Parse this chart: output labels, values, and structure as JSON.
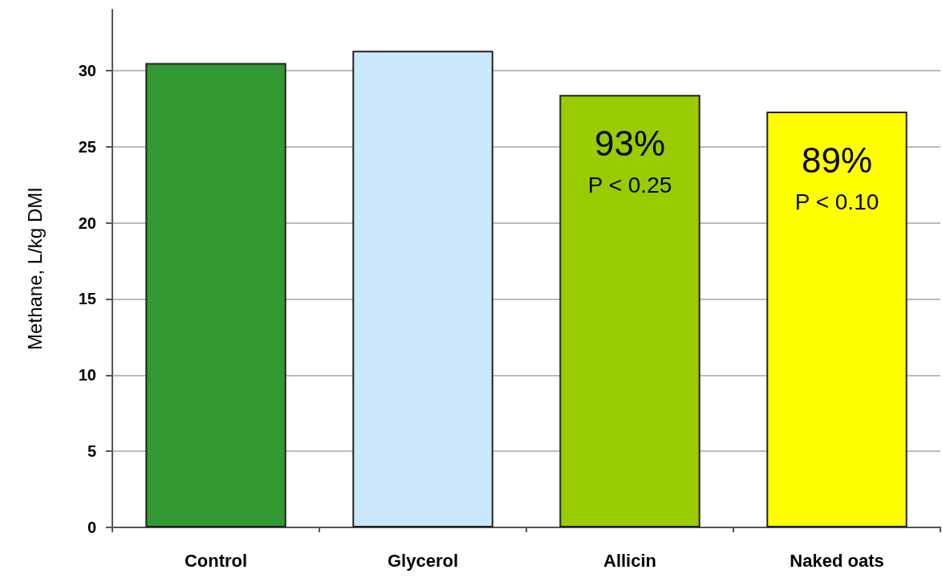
{
  "chart_data": {
    "type": "bar",
    "ylabel": "Methane, L/kg DMI",
    "categories": [
      "Control",
      "Glycerol",
      "Allicin",
      "Naked oats"
    ],
    "values": [
      30.5,
      31.3,
      28.4,
      27.3
    ],
    "colors": [
      "#339933",
      "#cce9fb",
      "#99cc00",
      "#ffff00"
    ],
    "ylim": [
      0,
      34
    ],
    "yticks": [
      0,
      5,
      10,
      15,
      20,
      25,
      30
    ],
    "grid": "y",
    "annotations": [
      "93%",
      "P < 0.25",
      "89%",
      "P < 0.10"
    ]
  }
}
